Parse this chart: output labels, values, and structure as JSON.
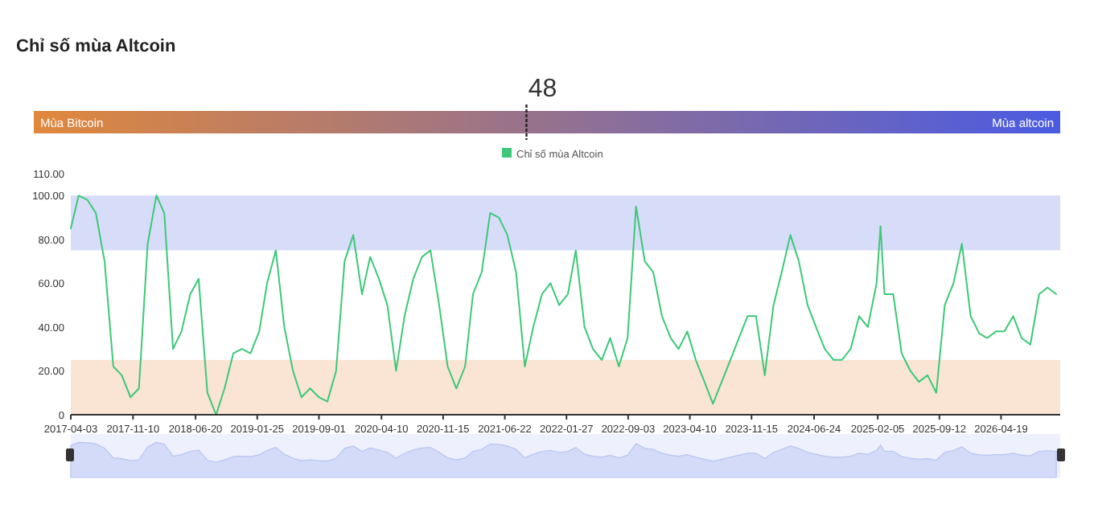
{
  "chart_data": [
    {
      "type": "other",
      "title": "Chỉ số mùa Altcoin",
      "values": [
        48
      ],
      "value_labels": [
        "48"
      ],
      "annotations": [
        "Mùa Bitcoin",
        "Mùa altcoin"
      ],
      "color": "#e0883c"
    },
    {
      "type": "line",
      "legend": "top",
      "grid": false,
      "xlim": [
        "2017-04-03",
        "2026-11-15"
      ],
      "ylim": [
        0,
        110
      ],
      "xticks": [
        "2017-04-03",
        "2017-11-10",
        "2018-06-20",
        "2019-01-25",
        "2019-09-01",
        "2020-04-10",
        "2020-11-15",
        "2021-06-22",
        "2022-01-27",
        "2022-09-03",
        "2023-04-10",
        "2023-11-15",
        "2024-06-24",
        "2025-02-05",
        "2025-09-12",
        "2026-04-19"
      ],
      "yticks": [
        0,
        {
          "value": 20,
          "label": "20.00"
        },
        {
          "value": 40,
          "label": "40.00"
        },
        {
          "value": 60,
          "label": "60.00"
        },
        {
          "value": 80,
          "label": "80.00"
        },
        {
          "value": 100,
          "label": "100.00"
        },
        {
          "value": 110,
          "label": "110.00"
        }
      ],
      "bands": [
        {
          "axis": "y",
          "from": 75,
          "to": 100,
          "color": "#d7ddf8"
        },
        {
          "axis": "y",
          "from": 0,
          "to": 25,
          "color": "#fae4d4"
        }
      ],
      "x": [
        "2017-04-03",
        "2017-05",
        "2017-06",
        "2017-07",
        "2017-08",
        "2017-09",
        "2017-10",
        "2017-11",
        "2017-12",
        "2018-01",
        "2018-02",
        "2018-03",
        "2018-04",
        "2018-05",
        "2018-06",
        "2018-07",
        "2018-08",
        "2018-09",
        "2018-10",
        "2018-11",
        "2018-12",
        "2019-01",
        "2019-02",
        "2019-03",
        "2019-04",
        "2019-05",
        "2019-06",
        "2019-07",
        "2019-08",
        "2019-09",
        "2019-10",
        "2019-11",
        "2019-12",
        "2020-01",
        "2020-02",
        "2020-03",
        "2020-04",
        "2020-05",
        "2020-06",
        "2020-07",
        "2020-08",
        "2020-09",
        "2020-10",
        "2020-11",
        "2020-12",
        "2021-01",
        "2021-02",
        "2021-03",
        "2021-04",
        "2021-05",
        "2021-06",
        "2021-07",
        "2021-08",
        "2021-09",
        "2021-10",
        "2021-11",
        "2021-12",
        "2022-01",
        "2022-02",
        "2022-03",
        "2022-04",
        "2022-05",
        "2022-06",
        "2022-07",
        "2022-08",
        "2022-09",
        "2022-10",
        "2022-11",
        "2022-12",
        "2023-01",
        "2023-02",
        "2023-03",
        "2023-04",
        "2023-05",
        "2023-06",
        "2023-07",
        "2023-08",
        "2023-09",
        "2023-10",
        "2023-11",
        "2023-12",
        "2024-01",
        "2024-02",
        "2024-03",
        "2024-04",
        "2024-05",
        "2024-06",
        "2024-07",
        "2024-08",
        "2024-09",
        "2024-10",
        "2024-11",
        "2024-12",
        "2025-01",
        "2025-02",
        "2025-02-15",
        "2025-03",
        "2025-04",
        "2025-05",
        "2025-06",
        "2025-07",
        "2025-08",
        "2025-09",
        "2025-10",
        "2025-11",
        "2025-12",
        "2026-01",
        "2026-02",
        "2026-03",
        "2026-04",
        "2026-05",
        "2026-06",
        "2026-07",
        "2026-08",
        "2026-09",
        "2026-10",
        "2026-11"
      ],
      "series": [
        {
          "name": "Chỉ số mùa Altcoin",
          "color": "#3cc878",
          "values": [
            85,
            100,
            98,
            92,
            70,
            22,
            18,
            8,
            12,
            78,
            100,
            92,
            30,
            38,
            55,
            62,
            10,
            0,
            12,
            28,
            30,
            28,
            38,
            60,
            75,
            40,
            20,
            8,
            12,
            8,
            6,
            20,
            70,
            82,
            55,
            72,
            62,
            50,
            20,
            45,
            62,
            72,
            75,
            50,
            22,
            12,
            22,
            55,
            65,
            92,
            90,
            82,
            65,
            22,
            40,
            55,
            60,
            50,
            55,
            75,
            40,
            30,
            25,
            35,
            22,
            35,
            95,
            70,
            65,
            45,
            35,
            30,
            38,
            25,
            15,
            5,
            15,
            25,
            35,
            45,
            45,
            18,
            50,
            65,
            82,
            70,
            50,
            40,
            30,
            25,
            25,
            30,
            45,
            40,
            60,
            86,
            55,
            55,
            28,
            20,
            15,
            18,
            10,
            50,
            60,
            78,
            45,
            37,
            35,
            38,
            38,
            45,
            35,
            32,
            55,
            58,
            55
          ]
        }
      ]
    }
  ]
}
